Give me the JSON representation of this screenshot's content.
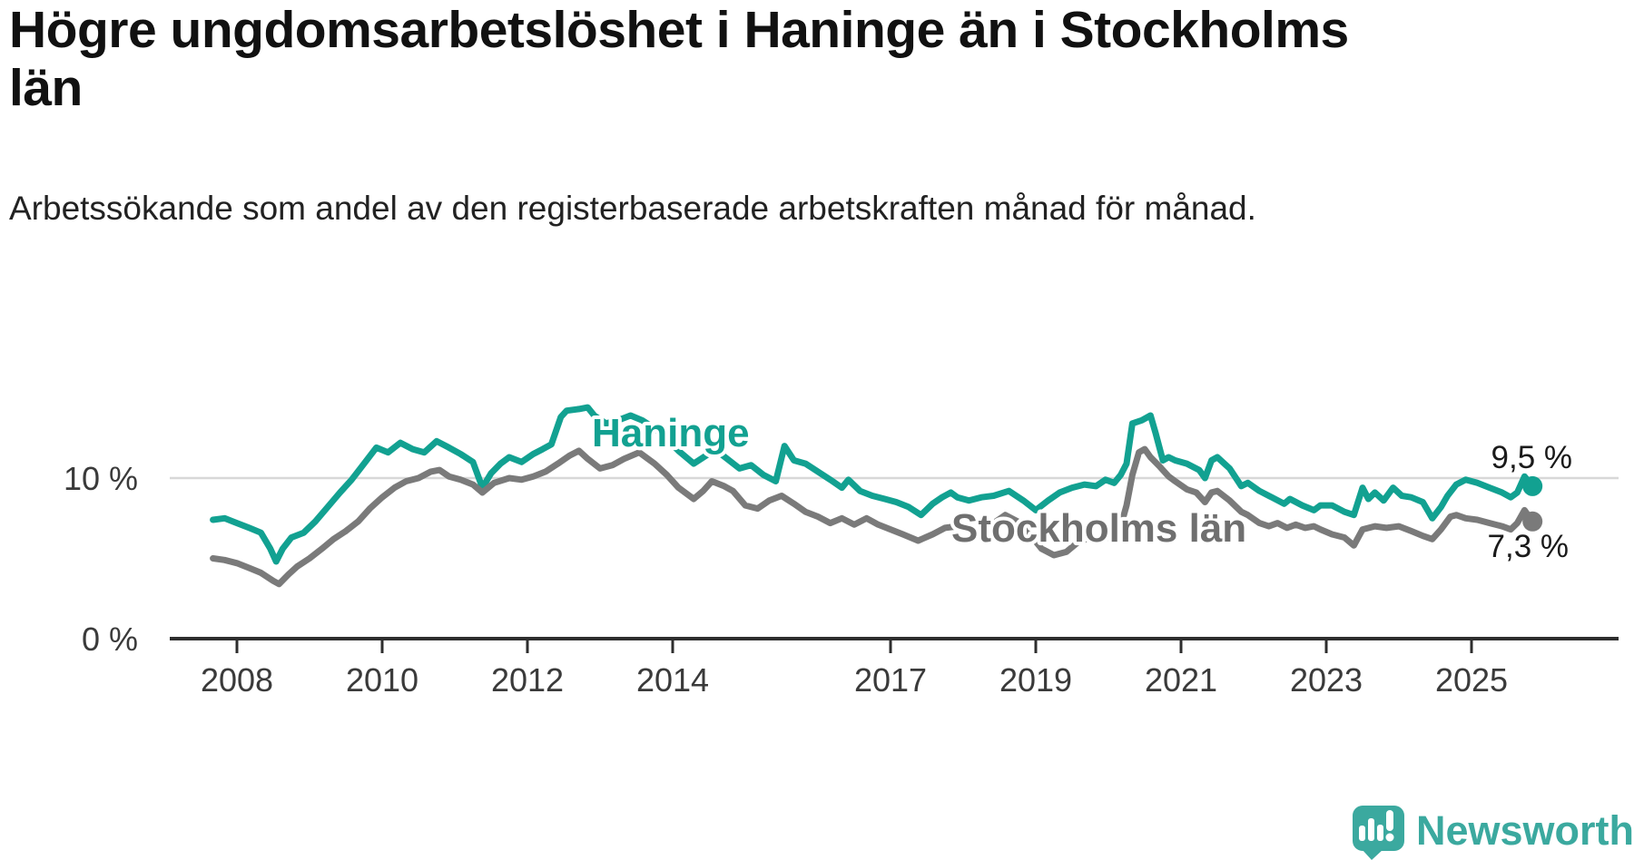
{
  "title": "Högre ungdomsarbetslöshet i Haninge än i Stockholms län",
  "subtitle": "Arbetssökande som andel av den registerbaserade arbetskraften månad för månad.",
  "branding": {
    "logo_text": "Newsworthy",
    "logo_color": "#3BA99F"
  },
  "chart_data": {
    "type": "line",
    "unit": "%",
    "grid": "single horizontal gridline at 10 %",
    "legend_position": "inline labels on lines",
    "xlim": [
      2007.5,
      2026.2
    ],
    "ylim": [
      0,
      15.5
    ],
    "x_axis": {
      "ticks": [
        {
          "year": 2008,
          "label": "2008"
        },
        {
          "year": 2010,
          "label": "2010"
        },
        {
          "year": 2012,
          "label": "2012"
        },
        {
          "year": 2014,
          "label": "2014"
        },
        {
          "year": 2017,
          "label": "2017"
        },
        {
          "year": 2019,
          "label": "2019"
        },
        {
          "year": 2021,
          "label": "2021"
        },
        {
          "year": 2023,
          "label": "2023"
        },
        {
          "year": 2025,
          "label": "2025"
        }
      ]
    },
    "y_axis": {
      "ticks": [
        {
          "value": 0,
          "label": "0 %"
        },
        {
          "value": 10,
          "label": "10 %"
        }
      ]
    },
    "gridline_value": 10,
    "series": [
      {
        "name": "Haninge",
        "color": "#12A191",
        "end_label": "9,5 %",
        "end_value": 9.5,
        "points": [
          [
            2007.67,
            7.4
          ],
          [
            2007.83,
            7.5
          ],
          [
            2008.0,
            7.2
          ],
          [
            2008.17,
            6.9
          ],
          [
            2008.33,
            6.6
          ],
          [
            2008.46,
            5.6
          ],
          [
            2008.54,
            4.8
          ],
          [
            2008.63,
            5.6
          ],
          [
            2008.75,
            6.3
          ],
          [
            2008.92,
            6.6
          ],
          [
            2009.08,
            7.3
          ],
          [
            2009.25,
            8.2
          ],
          [
            2009.42,
            9.1
          ],
          [
            2009.58,
            9.9
          ],
          [
            2009.75,
            10.9
          ],
          [
            2009.92,
            11.9
          ],
          [
            2010.08,
            11.6
          ],
          [
            2010.25,
            12.2
          ],
          [
            2010.42,
            11.8
          ],
          [
            2010.58,
            11.6
          ],
          [
            2010.75,
            12.3
          ],
          [
            2010.92,
            11.9
          ],
          [
            2011.08,
            11.5
          ],
          [
            2011.25,
            11.0
          ],
          [
            2011.38,
            9.4
          ],
          [
            2011.5,
            10.3
          ],
          [
            2011.63,
            10.9
          ],
          [
            2011.75,
            11.3
          ],
          [
            2011.92,
            11.0
          ],
          [
            2012.08,
            11.5
          ],
          [
            2012.21,
            11.8
          ],
          [
            2012.33,
            12.1
          ],
          [
            2012.46,
            13.8
          ],
          [
            2012.54,
            14.2
          ],
          [
            2012.71,
            14.3
          ],
          [
            2012.83,
            14.4
          ],
          [
            2012.92,
            13.9
          ],
          [
            2013.08,
            13.4
          ],
          [
            2013.25,
            13.6
          ],
          [
            2013.42,
            13.9
          ],
          [
            2013.58,
            13.6
          ],
          [
            2013.75,
            13.1
          ],
          [
            2013.92,
            12.4
          ],
          [
            2014.08,
            11.7
          ],
          [
            2014.29,
            10.9
          ],
          [
            2014.46,
            11.4
          ],
          [
            2014.58,
            11.8
          ],
          [
            2014.75,
            11.2
          ],
          [
            2014.92,
            10.6
          ],
          [
            2015.08,
            10.8
          ],
          [
            2015.25,
            10.2
          ],
          [
            2015.42,
            9.8
          ],
          [
            2015.54,
            12.0
          ],
          [
            2015.67,
            11.1
          ],
          [
            2015.83,
            10.9
          ],
          [
            2016.0,
            10.4
          ],
          [
            2016.17,
            9.9
          ],
          [
            2016.33,
            9.4
          ],
          [
            2016.42,
            9.9
          ],
          [
            2016.58,
            9.2
          ],
          [
            2016.75,
            8.9
          ],
          [
            2016.92,
            8.7
          ],
          [
            2017.08,
            8.5
          ],
          [
            2017.25,
            8.2
          ],
          [
            2017.42,
            7.7
          ],
          [
            2017.58,
            8.4
          ],
          [
            2017.71,
            8.8
          ],
          [
            2017.83,
            9.1
          ],
          [
            2017.92,
            8.8
          ],
          [
            2018.08,
            8.6
          ],
          [
            2018.25,
            8.8
          ],
          [
            2018.42,
            8.9
          ],
          [
            2018.63,
            9.2
          ],
          [
            2018.83,
            8.6
          ],
          [
            2019.0,
            8.0
          ],
          [
            2019.17,
            8.6
          ],
          [
            2019.33,
            9.1
          ],
          [
            2019.5,
            9.4
          ],
          [
            2019.67,
            9.6
          ],
          [
            2019.83,
            9.5
          ],
          [
            2019.96,
            9.9
          ],
          [
            2020.08,
            9.7
          ],
          [
            2020.17,
            10.2
          ],
          [
            2020.25,
            10.9
          ],
          [
            2020.33,
            13.4
          ],
          [
            2020.46,
            13.6
          ],
          [
            2020.58,
            13.9
          ],
          [
            2020.65,
            12.8
          ],
          [
            2020.75,
            11.1
          ],
          [
            2020.83,
            11.3
          ],
          [
            2020.92,
            11.1
          ],
          [
            2021.08,
            10.9
          ],
          [
            2021.25,
            10.5
          ],
          [
            2021.33,
            10.0
          ],
          [
            2021.42,
            11.1
          ],
          [
            2021.5,
            11.3
          ],
          [
            2021.67,
            10.6
          ],
          [
            2021.83,
            9.5
          ],
          [
            2021.92,
            9.7
          ],
          [
            2022.08,
            9.2
          ],
          [
            2022.25,
            8.8
          ],
          [
            2022.42,
            8.4
          ],
          [
            2022.5,
            8.7
          ],
          [
            2022.67,
            8.3
          ],
          [
            2022.83,
            8.0
          ],
          [
            2022.92,
            8.3
          ],
          [
            2023.08,
            8.3
          ],
          [
            2023.25,
            7.9
          ],
          [
            2023.38,
            7.7
          ],
          [
            2023.5,
            9.4
          ],
          [
            2023.58,
            8.7
          ],
          [
            2023.67,
            9.1
          ],
          [
            2023.79,
            8.6
          ],
          [
            2023.92,
            9.4
          ],
          [
            2024.04,
            8.9
          ],
          [
            2024.17,
            8.8
          ],
          [
            2024.33,
            8.5
          ],
          [
            2024.46,
            7.5
          ],
          [
            2024.58,
            8.2
          ],
          [
            2024.67,
            8.9
          ],
          [
            2024.79,
            9.6
          ],
          [
            2024.92,
            9.9
          ],
          [
            2025.08,
            9.7
          ],
          [
            2025.25,
            9.4
          ],
          [
            2025.42,
            9.1
          ],
          [
            2025.54,
            8.8
          ],
          [
            2025.63,
            9.1
          ],
          [
            2025.73,
            10.1
          ],
          [
            2025.84,
            9.5
          ]
        ]
      },
      {
        "name": "Stockholms län",
        "color": "#7A7A7A",
        "end_label": "7,3 %",
        "end_value": 7.3,
        "points": [
          [
            2007.67,
            5.0
          ],
          [
            2007.83,
            4.9
          ],
          [
            2008.0,
            4.7
          ],
          [
            2008.17,
            4.4
          ],
          [
            2008.33,
            4.1
          ],
          [
            2008.5,
            3.6
          ],
          [
            2008.58,
            3.4
          ],
          [
            2008.71,
            4.0
          ],
          [
            2008.83,
            4.5
          ],
          [
            2009.0,
            5.0
          ],
          [
            2009.17,
            5.6
          ],
          [
            2009.33,
            6.2
          ],
          [
            2009.5,
            6.7
          ],
          [
            2009.67,
            7.3
          ],
          [
            2009.83,
            8.1
          ],
          [
            2010.0,
            8.8
          ],
          [
            2010.17,
            9.4
          ],
          [
            2010.33,
            9.8
          ],
          [
            2010.5,
            10.0
          ],
          [
            2010.67,
            10.4
          ],
          [
            2010.79,
            10.5
          ],
          [
            2010.92,
            10.1
          ],
          [
            2011.08,
            9.9
          ],
          [
            2011.25,
            9.6
          ],
          [
            2011.38,
            9.1
          ],
          [
            2011.54,
            9.7
          ],
          [
            2011.75,
            10.0
          ],
          [
            2011.92,
            9.9
          ],
          [
            2012.08,
            10.1
          ],
          [
            2012.25,
            10.4
          ],
          [
            2012.42,
            10.9
          ],
          [
            2012.58,
            11.4
          ],
          [
            2012.71,
            11.7
          ],
          [
            2012.83,
            11.2
          ],
          [
            2013.0,
            10.6
          ],
          [
            2013.17,
            10.8
          ],
          [
            2013.33,
            11.2
          ],
          [
            2013.54,
            11.6
          ],
          [
            2013.75,
            10.9
          ],
          [
            2013.92,
            10.2
          ],
          [
            2014.08,
            9.4
          ],
          [
            2014.29,
            8.7
          ],
          [
            2014.42,
            9.2
          ],
          [
            2014.54,
            9.8
          ],
          [
            2014.71,
            9.5
          ],
          [
            2014.83,
            9.2
          ],
          [
            2015.0,
            8.3
          ],
          [
            2015.17,
            8.1
          ],
          [
            2015.33,
            8.6
          ],
          [
            2015.5,
            8.9
          ],
          [
            2015.67,
            8.4
          ],
          [
            2015.83,
            7.9
          ],
          [
            2016.0,
            7.6
          ],
          [
            2016.17,
            7.2
          ],
          [
            2016.33,
            7.5
          ],
          [
            2016.5,
            7.1
          ],
          [
            2016.67,
            7.5
          ],
          [
            2016.83,
            7.1
          ],
          [
            2017.0,
            6.8
          ],
          [
            2017.17,
            6.5
          ],
          [
            2017.38,
            6.1
          ],
          [
            2017.58,
            6.5
          ],
          [
            2017.75,
            6.9
          ],
          [
            2017.92,
            7.0
          ],
          [
            2018.08,
            6.8
          ],
          [
            2018.25,
            7.1
          ],
          [
            2018.42,
            7.2
          ],
          [
            2018.58,
            7.7
          ],
          [
            2018.75,
            7.3
          ],
          [
            2018.92,
            6.5
          ],
          [
            2019.08,
            5.6
          ],
          [
            2019.25,
            5.2
          ],
          [
            2019.42,
            5.4
          ],
          [
            2019.58,
            6.0
          ],
          [
            2019.75,
            6.3
          ],
          [
            2019.92,
            6.2
          ],
          [
            2020.08,
            6.4
          ],
          [
            2020.17,
            7.0
          ],
          [
            2020.25,
            8.3
          ],
          [
            2020.33,
            10.2
          ],
          [
            2020.42,
            11.6
          ],
          [
            2020.5,
            11.8
          ],
          [
            2020.58,
            11.3
          ],
          [
            2020.71,
            10.7
          ],
          [
            2020.83,
            10.1
          ],
          [
            2020.92,
            9.8
          ],
          [
            2021.08,
            9.3
          ],
          [
            2021.21,
            9.1
          ],
          [
            2021.33,
            8.5
          ],
          [
            2021.42,
            9.1
          ],
          [
            2021.5,
            9.2
          ],
          [
            2021.67,
            8.6
          ],
          [
            2021.83,
            7.9
          ],
          [
            2021.92,
            7.7
          ],
          [
            2022.08,
            7.2
          ],
          [
            2022.21,
            7.0
          ],
          [
            2022.33,
            7.2
          ],
          [
            2022.46,
            6.9
          ],
          [
            2022.58,
            7.1
          ],
          [
            2022.71,
            6.9
          ],
          [
            2022.83,
            7.0
          ],
          [
            2022.92,
            6.8
          ],
          [
            2023.08,
            6.5
          ],
          [
            2023.25,
            6.3
          ],
          [
            2023.38,
            5.8
          ],
          [
            2023.5,
            6.8
          ],
          [
            2023.67,
            7.0
          ],
          [
            2023.83,
            6.9
          ],
          [
            2024.0,
            7.0
          ],
          [
            2024.17,
            6.7
          ],
          [
            2024.33,
            6.4
          ],
          [
            2024.46,
            6.2
          ],
          [
            2024.58,
            6.8
          ],
          [
            2024.71,
            7.6
          ],
          [
            2024.79,
            7.7
          ],
          [
            2024.92,
            7.5
          ],
          [
            2025.08,
            7.4
          ],
          [
            2025.25,
            7.2
          ],
          [
            2025.42,
            7.0
          ],
          [
            2025.54,
            6.8
          ],
          [
            2025.63,
            7.2
          ],
          [
            2025.73,
            8.0
          ],
          [
            2025.84,
            7.3
          ]
        ]
      }
    ]
  }
}
